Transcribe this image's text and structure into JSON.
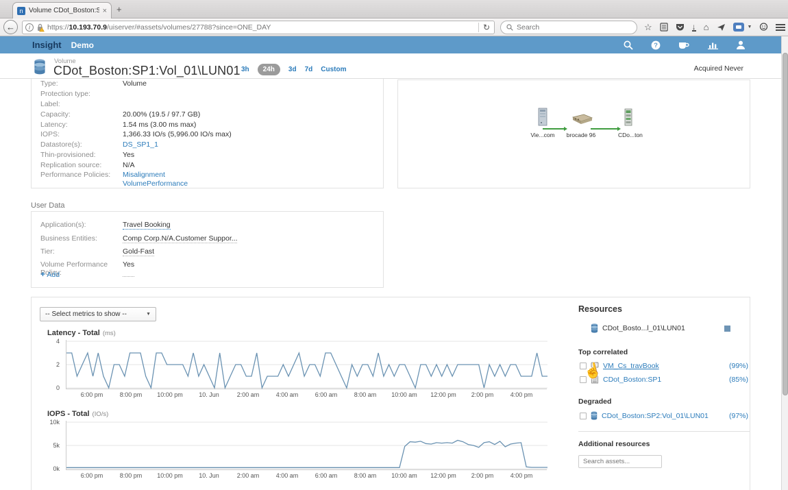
{
  "colors": {
    "appbar": "#5e9ac9",
    "link": "#2b7bba",
    "chart_line": "#6a92b2",
    "legend_swatch": "#6e94b5",
    "arrow_green": "#3f9c3f"
  },
  "browser": {
    "tab": {
      "title": "Volume CDot_Boston:SP1:...",
      "close": "×",
      "new_tab": "+"
    },
    "back": "←",
    "url_scheme": "https://",
    "url_host": "10.193.70.9",
    "url_path": "/uiserver/#assets/volumes/27788?since=ONE_DAY",
    "reload": "↻",
    "search_placeholder": "Search"
  },
  "appbar": {
    "brand": "Insight",
    "env": "Demo"
  },
  "page_header": {
    "asset_type": "Volume",
    "title": "CDot_Boston:SP1:Vol_01\\LUN01",
    "ranges": [
      "3h",
      "24h",
      "3d",
      "7d",
      "Custom"
    ],
    "selected_range": "24h",
    "acquired": "Acquired Never"
  },
  "overview": {
    "rows": [
      {
        "label": "Type:",
        "value": "Volume"
      },
      {
        "label": "Protection type:",
        "value": ""
      },
      {
        "label": "Label:",
        "value": ""
      },
      {
        "label": "Capacity:",
        "value": "20.00% (19.5 / 97.7 GB)"
      },
      {
        "label": "Latency:",
        "value": "1.54 ms (3.00 ms max)"
      },
      {
        "label": "IOPS:",
        "value": "1,366.33 IO/s (5,996.00 IO/s max)"
      },
      {
        "label": "Datastore(s):",
        "value": "DS_SP1_1"
      },
      {
        "label": "Thin-provisioned:",
        "value": "Yes"
      },
      {
        "label": "Replication source:",
        "value": "N/A"
      },
      {
        "label": "Performance Policies:",
        "link1": "Misalignment",
        "link2": "VolumePerformance"
      }
    ]
  },
  "topology": {
    "nodes": [
      {
        "label": "Vie...com",
        "icon": "server"
      },
      {
        "label": "brocade 96",
        "icon": "switch"
      },
      {
        "label": "CDo...ton",
        "icon": "storage"
      }
    ]
  },
  "user_data": {
    "title": "User Data",
    "rows": [
      {
        "label": "Application(s):",
        "value": "Travel Booking"
      },
      {
        "label": "Business Entities:",
        "value": "Comp Corp.N/A.Customer Suppor..."
      },
      {
        "label": "Tier:",
        "value": "Gold-Fast"
      },
      {
        "label": "Volume Performance Policy:",
        "value": "Yes"
      }
    ],
    "add_plus": "+",
    "add_label": "Add"
  },
  "expert": {
    "metrics_placeholder": "-- Select metrics to show --",
    "caret": "▼"
  },
  "resources": {
    "title": "Resources",
    "primary": {
      "name": "CDot_Bosto...l_01\\LUN01"
    },
    "top_correlated": {
      "title": "Top correlated",
      "items": [
        {
          "name": "VM_Cs_travBook",
          "pct": "(99%)"
        },
        {
          "name": "CDot_Boston:SP1",
          "pct": "(85%)"
        }
      ]
    },
    "degraded": {
      "title": "Degraded",
      "items": [
        {
          "name": "CDot_Boston:SP2:Vol_01\\LUN01",
          "pct": "(97%)"
        }
      ]
    },
    "additional": {
      "title": "Additional resources",
      "search_placeholder": "Search assets..."
    }
  },
  "chart_data": [
    {
      "type": "line",
      "title": "Latency - Total",
      "unit": "(ms)",
      "ylim": [
        0,
        4
      ],
      "yticks": [
        0,
        2,
        4
      ],
      "ytick_labels": [
        "0",
        "2",
        "4"
      ],
      "x_ticks": [
        "6:00 pm",
        "8:00 pm",
        "10:00 pm",
        "10. Jun",
        "2:00 am",
        "4:00 am",
        "6:00 am",
        "8:00 am",
        "10:00 am",
        "12:00 pm",
        "2:00 pm",
        "4:00 pm"
      ],
      "x_range_hours": 24.6,
      "values": [
        3,
        3,
        1,
        2,
        3,
        1,
        3,
        1,
        0,
        2,
        2,
        1,
        3,
        3,
        3,
        1,
        0,
        3,
        3,
        2,
        2,
        2,
        2,
        1,
        3,
        1,
        2,
        1,
        0,
        3,
        0,
        1,
        2,
        2,
        1,
        1,
        3,
        0,
        1,
        1,
        1,
        2,
        1,
        2,
        3,
        1,
        2,
        2,
        1,
        3,
        3,
        2,
        1,
        0,
        2,
        1,
        2,
        2,
        1,
        3,
        1,
        2,
        1,
        2,
        2,
        1,
        0,
        2,
        2,
        1,
        2,
        1,
        2,
        1,
        2,
        2,
        2,
        2,
        2,
        0,
        2,
        1,
        2,
        1,
        2,
        2,
        1,
        1,
        1,
        3,
        1,
        1
      ],
      "line_color": "#6a92b2"
    },
    {
      "type": "line",
      "title": "IOPS - Total",
      "unit": "(IO/s)",
      "ylim": [
        0,
        10
      ],
      "yticks": [
        0,
        5,
        10
      ],
      "ytick_labels": [
        "0k",
        "5k",
        "10k"
      ],
      "x_ticks": [
        "6:00 pm",
        "8:00 pm",
        "10:00 pm",
        "10. Jun",
        "2:00 am",
        "4:00 am",
        "6:00 am",
        "8:00 am",
        "10:00 am",
        "12:00 pm",
        "2:00 pm",
        "4:00 pm"
      ],
      "x_range_hours": 24.6,
      "values": [
        0.25,
        0.25,
        0.25,
        0.25,
        0.25,
        0.25,
        0.25,
        0.25,
        0.25,
        0.25,
        0.25,
        0.25,
        0.25,
        0.25,
        0.25,
        0.25,
        0.25,
        0.25,
        0.25,
        0.25,
        0.25,
        0.25,
        0.25,
        0.25,
        0.25,
        0.25,
        0.25,
        0.25,
        0.25,
        0.25,
        0.25,
        0.25,
        0.25,
        0.25,
        0.25,
        0.25,
        0.25,
        0.25,
        0.25,
        0.25,
        0.25,
        0.25,
        0.25,
        0.25,
        0.25,
        0.25,
        0.25,
        0.25,
        0.25,
        0.25,
        0.25,
        0.25,
        0.25,
        0.25,
        0.25,
        0.25,
        0.25,
        0.25,
        0.25,
        0.25,
        0.25,
        0.25,
        0.25,
        0.25,
        4.8,
        5.8,
        5.7,
        5.9,
        5.4,
        5.3,
        5.6,
        5.5,
        5.6,
        5.5,
        6.1,
        5.8,
        5.2,
        5.0,
        4.6,
        5.6,
        5.8,
        5.2,
        5.9,
        4.7,
        5.3,
        5.5,
        5.6,
        0.4,
        0.3,
        0.3,
        0.3,
        0.3
      ],
      "line_color": "#6a92b2"
    }
  ]
}
